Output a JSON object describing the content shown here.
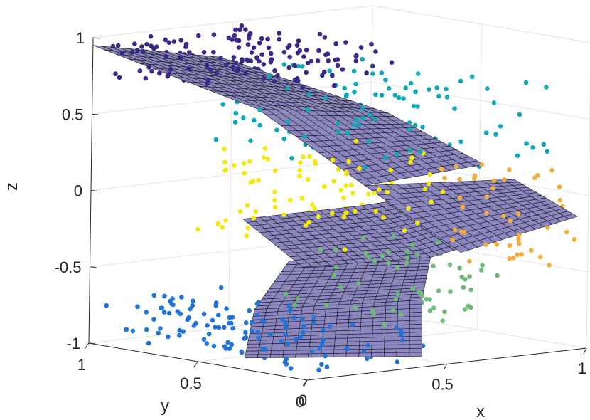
{
  "chart_data": {
    "type": "scatter3d",
    "title": "",
    "xlabel": "x",
    "ylabel": "y",
    "zlabel": "z",
    "xlim": [
      0,
      1
    ],
    "ylim": [
      0,
      1
    ],
    "zlim": [
      -1,
      1
    ],
    "x_ticks": [
      {
        "value": 0,
        "label": "0"
      },
      {
        "value": 0.5,
        "label": "0.5"
      },
      {
        "value": 1,
        "label": "1"
      }
    ],
    "y_ticks": [
      {
        "value": 0,
        "label": "0"
      },
      {
        "value": 0.5,
        "label": "0.5"
      },
      {
        "value": 1,
        "label": "1"
      }
    ],
    "z_ticks": [
      {
        "value": -1,
        "label": "-1"
      },
      {
        "value": -0.5,
        "label": "-0.5"
      },
      {
        "value": 0,
        "label": "0"
      },
      {
        "value": 0.5,
        "label": "0.5"
      },
      {
        "value": 1,
        "label": "1"
      }
    ],
    "grid": true,
    "surface_color": "#8c87c2",
    "surface_edge_color": "#1a1a1a",
    "series": [
      {
        "color": "#1f73d9",
        "region": {
          "x": [
            0.0,
            0.45
          ],
          "y": [
            0.0,
            1.0
          ],
          "z": [
            -1.0,
            -0.7
          ]
        },
        "count": 170
      },
      {
        "color": "#6fba77",
        "region": {
          "x": [
            0.3,
            0.75
          ],
          "y": [
            0.0,
            0.6
          ],
          "z": [
            -0.75,
            -0.25
          ]
        },
        "count": 110
      },
      {
        "color": "#f5e80c",
        "region": {
          "x": [
            0.25,
            0.75
          ],
          "y": [
            0.25,
            0.9
          ],
          "z": [
            -0.3,
            0.25
          ]
        },
        "count": 130
      },
      {
        "color": "#f0ae40",
        "region": {
          "x": [
            0.75,
            1.0
          ],
          "y": [
            0.0,
            0.5
          ],
          "z": [
            -0.45,
            0.15
          ]
        },
        "count": 70
      },
      {
        "color": "#0fa8b8",
        "region": {
          "x": [
            0.35,
            1.0
          ],
          "y": [
            0.1,
            1.0
          ],
          "z": [
            0.2,
            0.75
          ]
        },
        "count": 120
      },
      {
        "color": "#352a87",
        "region": {
          "x": [
            0.0,
            0.55
          ],
          "y": [
            0.3,
            1.0
          ],
          "z": [
            0.75,
            1.0
          ]
        },
        "count": 170
      }
    ],
    "surfaces": [
      {
        "corners": [
          [
            0.05,
            0.35,
            -0.95
          ],
          [
            0.45,
            0.05,
            -0.95
          ],
          [
            0.58,
            0.22,
            -0.65
          ],
          [
            0.2,
            0.5,
            -0.7
          ]
        ]
      },
      {
        "corners": [
          [
            0.2,
            0.5,
            -0.7
          ],
          [
            0.58,
            0.22,
            -0.65
          ],
          [
            0.75,
            0.4,
            -0.45
          ],
          [
            0.4,
            0.6,
            -0.45
          ]
        ]
      },
      {
        "corners": [
          [
            0.35,
            0.75,
            -0.2
          ],
          [
            0.58,
            0.5,
            -0.1
          ],
          [
            0.75,
            0.4,
            -0.45
          ],
          [
            0.45,
            0.6,
            -0.5
          ]
        ]
      },
      {
        "corners": [
          [
            0.58,
            0.5,
            -0.1
          ],
          [
            0.75,
            0.2,
            0.05
          ],
          [
            0.92,
            0.12,
            -0.2
          ],
          [
            0.75,
            0.4,
            -0.45
          ]
        ]
      },
      {
        "corners": [
          [
            0.55,
            0.45,
            0.05
          ],
          [
            0.85,
            0.15,
            0.1
          ],
          [
            1.0,
            0.05,
            -0.15
          ],
          [
            0.78,
            0.3,
            -0.4
          ]
        ]
      },
      {
        "corners": [
          [
            0.32,
            0.65,
            0.55
          ],
          [
            0.55,
            0.35,
            0.55
          ],
          [
            0.78,
            0.2,
            0.2
          ],
          [
            0.55,
            0.45,
            0.05
          ]
        ]
      },
      {
        "corners": [
          [
            0.0,
            1.0,
            0.95
          ],
          [
            0.22,
            0.7,
            0.9
          ],
          [
            0.55,
            0.35,
            0.55
          ],
          [
            0.32,
            0.65,
            0.55
          ]
        ]
      }
    ]
  }
}
